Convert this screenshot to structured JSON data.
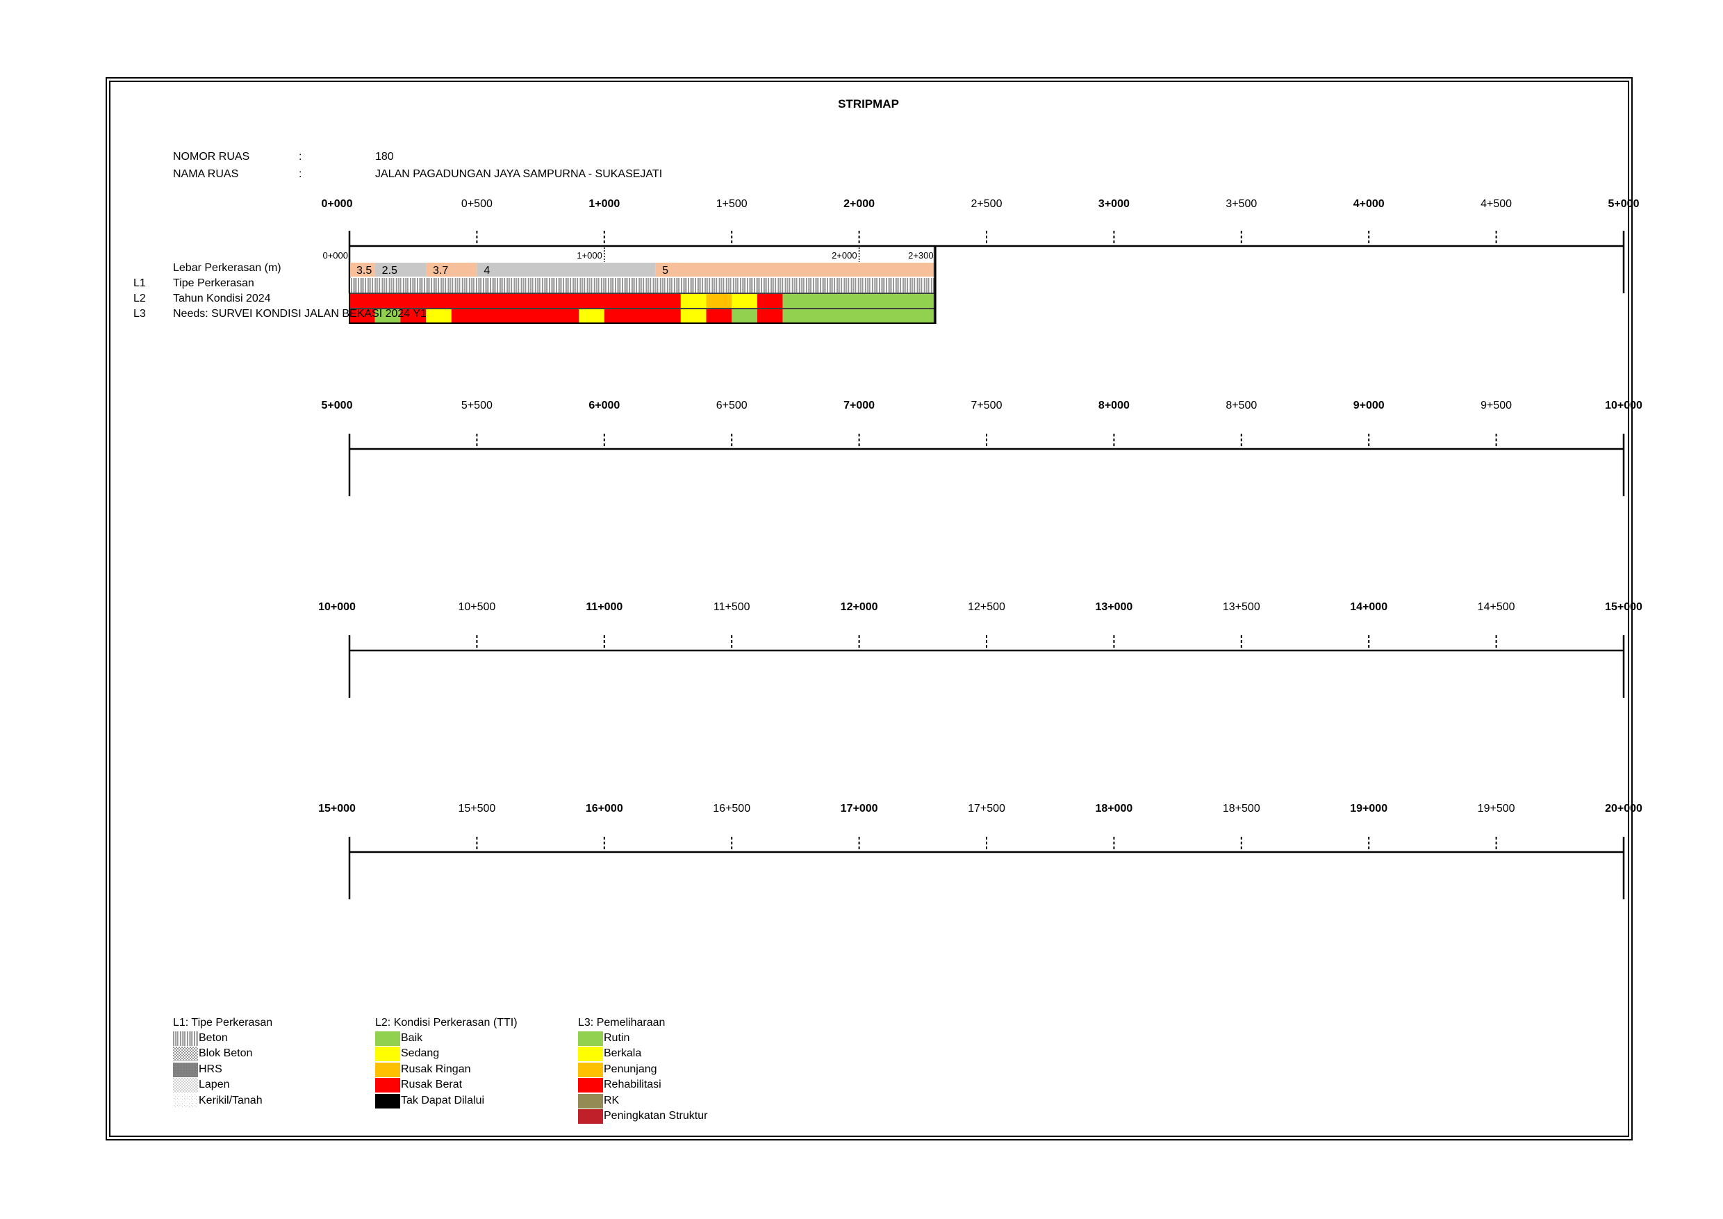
{
  "title": "STRIPMAP",
  "header": {
    "nomor_label": "NOMOR RUAS",
    "nama_label": "NAMA RUAS",
    "colon": ":",
    "nomor_value": "180",
    "nama_value": "JALAN PAGADUNGAN JAYA SAMPURNA - SUKASEJATI"
  },
  "rows": [
    {
      "ticks": [
        "0+000",
        "0+500",
        "1+000",
        "1+500",
        "2+000",
        "2+500",
        "3+000",
        "3+500",
        "4+000",
        "4+500",
        "5+000"
      ]
    },
    {
      "ticks": [
        "5+000",
        "5+500",
        "6+000",
        "6+500",
        "7+000",
        "7+500",
        "8+000",
        "8+500",
        "9+000",
        "9+500",
        "10+000"
      ]
    },
    {
      "ticks": [
        "10+000",
        "10+500",
        "11+000",
        "11+500",
        "12+000",
        "12+500",
        "13+000",
        "13+500",
        "14+000",
        "14+500",
        "15+000"
      ]
    },
    {
      "ticks": [
        "15+000",
        "15+500",
        "16+000",
        "16+500",
        "17+000",
        "17+500",
        "18+000",
        "18+500",
        "19+000",
        "19+500",
        "20+000"
      ]
    }
  ],
  "strip": {
    "segment_labels": [
      "0+000",
      "1+000",
      "2+000",
      "2+300"
    ],
    "segment_label_km": [
      0,
      1,
      2,
      2.3
    ],
    "row_labels": [
      {
        "code": "",
        "label": "Lebar Perkerasan (m)"
      },
      {
        "code": "L1",
        "label": "Tipe Perkerasan"
      },
      {
        "code": "L2",
        "label": "Tahun Kondisi 2024"
      },
      {
        "code": "L3",
        "label": "Needs: SURVEI KONDISI JALAN BEKASI 2024 Y1"
      }
    ],
    "width_segments": [
      {
        "from": 0.0,
        "to": 0.1,
        "label": "3.5",
        "color": "#F8C09A"
      },
      {
        "from": 0.1,
        "to": 0.3,
        "label": "2.5",
        "color": "#C8C8C8"
      },
      {
        "from": 0.3,
        "to": 0.5,
        "label": "3.7",
        "color": "#F8C09A"
      },
      {
        "from": 0.5,
        "to": 1.2,
        "label": "4",
        "color": "#C8C8C8"
      },
      {
        "from": 1.2,
        "to": 2.3,
        "label": "5",
        "color": "#F8C09A"
      }
    ],
    "pavement_type": {
      "from": 0.0,
      "to": 2.3,
      "type": "Beton"
    },
    "condition_segments": [
      {
        "from": 0.0,
        "to": 1.3,
        "color": "#FF0000"
      },
      {
        "from": 1.3,
        "to": 1.4,
        "color": "#FFFF00"
      },
      {
        "from": 1.4,
        "to": 1.5,
        "color": "#FFC000"
      },
      {
        "from": 1.5,
        "to": 1.6,
        "color": "#FFFF00"
      },
      {
        "from": 1.6,
        "to": 1.7,
        "color": "#FF0000"
      },
      {
        "from": 1.7,
        "to": 2.3,
        "color": "#92D050"
      }
    ],
    "needs_segments": [
      {
        "from": 0.0,
        "to": 0.1,
        "color": "#FF0000"
      },
      {
        "from": 0.1,
        "to": 0.2,
        "color": "#92D050"
      },
      {
        "from": 0.2,
        "to": 0.3,
        "color": "#FF0000"
      },
      {
        "from": 0.3,
        "to": 0.4,
        "color": "#FFFF00"
      },
      {
        "from": 0.4,
        "to": 0.9,
        "color": "#FF0000"
      },
      {
        "from": 0.9,
        "to": 1.0,
        "color": "#FFFF00"
      },
      {
        "from": 1.0,
        "to": 1.3,
        "color": "#FF0000"
      },
      {
        "from": 1.3,
        "to": 1.4,
        "color": "#FFFF00"
      },
      {
        "from": 1.4,
        "to": 1.5,
        "color": "#FF0000"
      },
      {
        "from": 1.5,
        "to": 1.6,
        "color": "#92D050"
      },
      {
        "from": 1.6,
        "to": 1.7,
        "color": "#FF0000"
      },
      {
        "from": 1.7,
        "to": 2.3,
        "color": "#92D050"
      }
    ]
  },
  "legend": {
    "l1": {
      "title": "L1: Tipe Perkerasan",
      "items": [
        {
          "label": "Beton",
          "pattern": "beton"
        },
        {
          "label": "Blok Beton",
          "pattern": "blok"
        },
        {
          "label": "HRS",
          "pattern": "hrs"
        },
        {
          "label": "Lapen",
          "pattern": "lapen"
        },
        {
          "label": "Kerikil/Tanah",
          "pattern": "kerikil"
        }
      ]
    },
    "l2": {
      "title": "L2: Kondisi Perkerasan (TTI)",
      "items": [
        {
          "label": "Baik",
          "color": "#92D050"
        },
        {
          "label": "Sedang",
          "color": "#FFFF00"
        },
        {
          "label": "Rusak Ringan",
          "color": "#FFC000"
        },
        {
          "label": "Rusak Berat",
          "color": "#FF0000"
        },
        {
          "label": "Tak Dapat Dilalui",
          "color": "#000000"
        }
      ]
    },
    "l3": {
      "title": "L3: Pemeliharaan",
      "items": [
        {
          "label": "Rutin",
          "color": "#92D050"
        },
        {
          "label": "Berkala",
          "color": "#FFFF00"
        },
        {
          "label": "Penunjang",
          "color": "#FFC000"
        },
        {
          "label": "Rehabilitasi",
          "color": "#FF0000"
        },
        {
          "label": "RK",
          "color": "#948A54"
        },
        {
          "label": "Peningkatan Struktur",
          "color": "#C0202A"
        }
      ]
    }
  }
}
